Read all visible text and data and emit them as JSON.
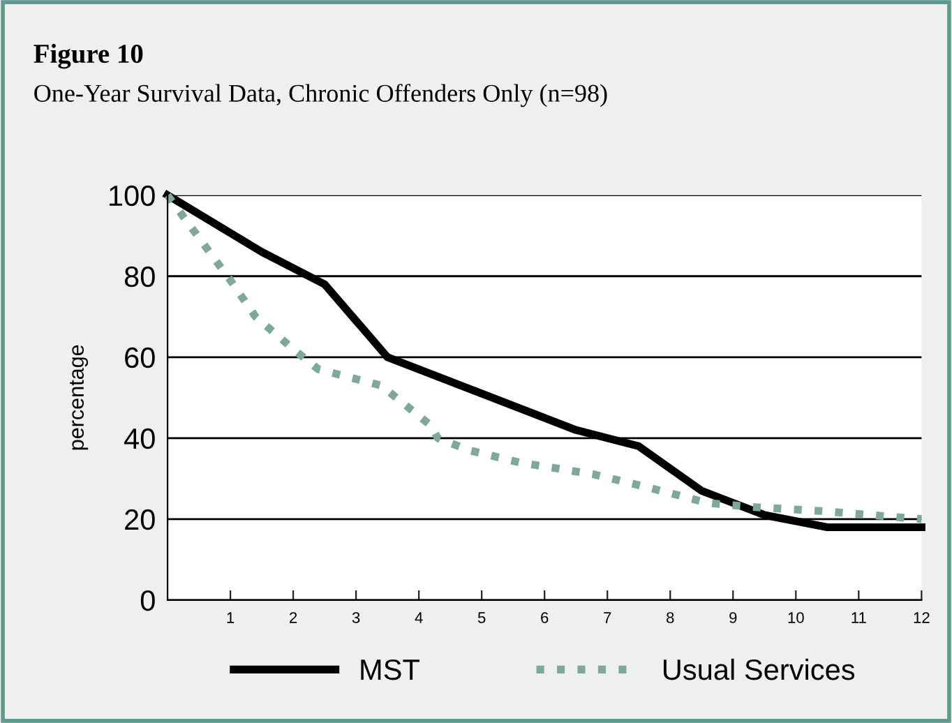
{
  "chart_data": {
    "type": "line",
    "title": "Figure 10",
    "subtitle": "One-Year Survival Data, Chronic Offenders Only (n=98)",
    "ylabel": "percentage",
    "series": [
      {
        "name": "MST",
        "color": "#000000",
        "line_style": "solid",
        "x": [
          0,
          1.5,
          2.5,
          3.5,
          6.5,
          7.5,
          8.5,
          9.5,
          10.5,
          12
        ],
        "values": [
          100,
          86,
          78,
          60,
          42,
          38,
          27,
          21,
          18,
          18
        ]
      },
      {
        "name": "Usual Services",
        "color": "#7fa89a",
        "line_style": "dotted",
        "x": [
          0,
          1,
          1.4,
          2,
          2.4,
          2.9,
          3.4,
          3.8,
          4.2,
          4.3,
          4.8,
          5.6,
          6,
          6.8,
          7.6,
          8.6,
          9.3,
          10.4,
          12
        ],
        "values": [
          100,
          79,
          70,
          62,
          57,
          55,
          53,
          48,
          43,
          40,
          37,
          34,
          33,
          31,
          28,
          24,
          23,
          22,
          20
        ]
      }
    ],
    "xlim": [
      0,
      12
    ],
    "xticks": [
      1,
      2,
      3,
      4,
      5,
      6,
      7,
      8,
      9,
      10,
      11,
      12
    ],
    "ylim": [
      0,
      100
    ],
    "yticks": [
      0,
      20,
      40,
      60,
      80,
      100
    ],
    "grid": "y",
    "legend": "bottom"
  }
}
